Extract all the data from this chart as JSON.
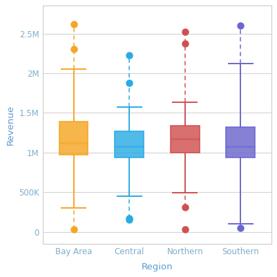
{
  "regions": [
    "Bay Area",
    "Central",
    "Northern",
    "Southern"
  ],
  "colors": [
    "#F5A623",
    "#2AABE4",
    "#D05050",
    "#6A67CE"
  ],
  "box_data": {
    "Bay Area": {
      "whislo": 300000,
      "q1": 970000,
      "med": 1120000,
      "q3": 1390000,
      "whishi": 2050000,
      "fliers_high": [
        2300000,
        2620000
      ],
      "fliers_low": [
        30000
      ]
    },
    "Central": {
      "whislo": 450000,
      "q1": 940000,
      "med": 1080000,
      "q3": 1270000,
      "whishi": 1570000,
      "fliers_high": [
        1880000,
        2230000
      ],
      "fliers_low": [
        155000,
        170000
      ]
    },
    "Northern": {
      "whislo": 490000,
      "q1": 1000000,
      "med": 1170000,
      "q3": 1340000,
      "whishi": 1630000,
      "fliers_high": [
        2370000,
        2520000
      ],
      "fliers_low": [
        30000,
        310000
      ]
    },
    "Southern": {
      "whislo": 100000,
      "q1": 940000,
      "med": 1080000,
      "q3": 1320000,
      "whishi": 2120000,
      "fliers_high": [
        2600000
      ],
      "fliers_low": [
        50000
      ]
    }
  },
  "ylabel": "Revenue",
  "xlabel": "Region",
  "yticks": [
    0,
    500000,
    1000000,
    1500000,
    2000000,
    2500000
  ],
  "yticklabels": [
    "0",
    "500K",
    "1M",
    "1.5M",
    "2M",
    "2.5M"
  ],
  "ylim": [
    -150000,
    2850000
  ],
  "xlim": [
    0.45,
    4.55
  ],
  "background_color": "#FFFFFF",
  "grid_color": "#D3D3D3",
  "axis_label_color": "#5B9BD5",
  "tick_label_color": "#7FAECC",
  "box_width": 0.52,
  "cap_ratio": 0.42,
  "figsize": [
    4.01,
    4.01
  ],
  "dpi": 100
}
